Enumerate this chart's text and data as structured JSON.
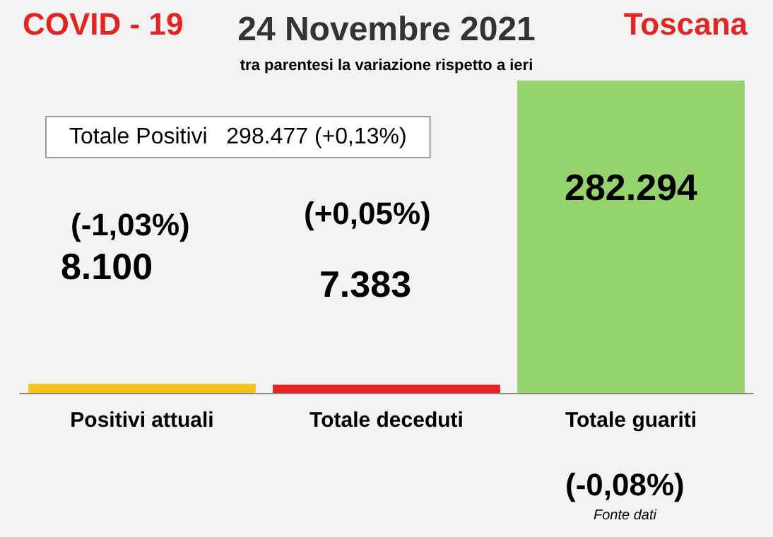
{
  "chart_data": {
    "type": "bar",
    "title": "24 Novembre 2021",
    "subtitle": "tra parentesi la variazione rispetto a ieri",
    "categories": [
      "Positivi attuali",
      "Totale deceduti",
      "Totale guariti"
    ],
    "values": [
      8100,
      7383,
      282294
    ],
    "colors": [
      "#f5c21b",
      "#e52421",
      "#95d36c"
    ],
    "value_labels": [
      "8.100",
      "7.383",
      "282.294"
    ],
    "annotations": [
      "COVID - 19",
      "Toscana",
      "Totale Positivi   298.477 (+0,13%)",
      "(-1,03%)",
      "(+0,05%)",
      "(-0,08%)",
      "Fonte dati"
    ]
  }
}
